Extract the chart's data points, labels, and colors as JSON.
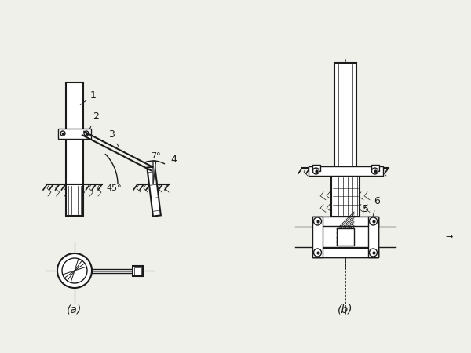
{
  "bg_color": "#f0f0eb",
  "line_color": "#1a1a1a",
  "label_color": "#111111",
  "fig_width": 6.0,
  "fig_height": 4.5,
  "dpi": 100,
  "label_a": "(a)",
  "label_b": "(b)",
  "angle_45": "45°",
  "angle_7": "7°"
}
